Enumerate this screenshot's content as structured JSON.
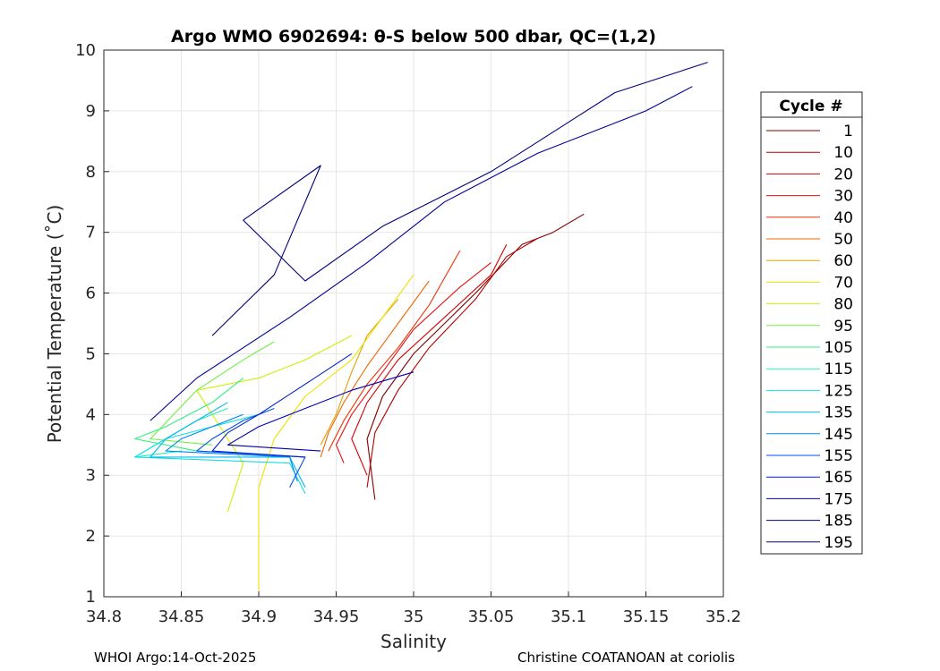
{
  "chart_data": {
    "type": "line",
    "title": "Argo WMO 6902694: θ-S below 500 dbar,  QC=(1,2)",
    "xlabel": "Salinity",
    "ylabel": "Potential Temperature (˚C)",
    "xlim": [
      34.8,
      35.2
    ],
    "ylim": [
      1,
      10
    ],
    "grid": true,
    "xticks": [
      "34.8",
      "34.85",
      "34.9",
      "34.95",
      "35",
      "35.05",
      "35.1",
      "35.15",
      "35.2"
    ],
    "yticks": [
      "1",
      "2",
      "3",
      "4",
      "5",
      "6",
      "7",
      "8",
      "9",
      "10"
    ],
    "legend": {
      "title": "Cycle #",
      "placement": "outside-right",
      "entries": [
        {
          "label": "1",
          "color": "#7f0000"
        },
        {
          "label": "10",
          "color": "#b40000"
        },
        {
          "label": "20",
          "color": "#d40000"
        },
        {
          "label": "30",
          "color": "#e81010"
        },
        {
          "label": "40",
          "color": "#f03000"
        },
        {
          "label": "50",
          "color": "#f06800"
        },
        {
          "label": "60",
          "color": "#e0a000"
        },
        {
          "label": "70",
          "color": "#f0e000"
        },
        {
          "label": "80",
          "color": "#d0f000"
        },
        {
          "label": "95",
          "color": "#70f040"
        },
        {
          "label": "105",
          "color": "#30f080"
        },
        {
          "label": "115",
          "color": "#20f0c0"
        },
        {
          "label": "125",
          "color": "#10e0e0"
        },
        {
          "label": "135",
          "color": "#00b8f0"
        },
        {
          "label": "145",
          "color": "#0088f0"
        },
        {
          "label": "155",
          "color": "#0050f0"
        },
        {
          "label": "165",
          "color": "#0020d0"
        },
        {
          "label": "175",
          "color": "#0000b0"
        },
        {
          "label": "185",
          "color": "#000098"
        },
        {
          "label": "195",
          "color": "#000080"
        }
      ]
    },
    "series": [
      {
        "cycle": "1",
        "salinity": [
          35.11,
          35.09,
          35.07,
          35.04,
          35.0,
          34.98,
          34.97,
          34.975
        ],
        "theta": [
          7.3,
          7.0,
          6.8,
          6.0,
          5.0,
          4.3,
          3.6,
          2.6
        ]
      },
      {
        "cycle": "10",
        "salinity": [
          35.08,
          35.06,
          35.04,
          35.01,
          34.99,
          34.975,
          34.97
        ],
        "theta": [
          6.9,
          6.6,
          5.9,
          5.1,
          4.4,
          3.7,
          2.8
        ]
      },
      {
        "cycle": "20",
        "salinity": [
          35.06,
          35.05,
          35.02,
          34.99,
          34.97,
          34.96,
          34.97
        ],
        "theta": [
          6.8,
          6.3,
          5.6,
          4.9,
          4.2,
          3.6,
          3.0
        ]
      },
      {
        "cycle": "30",
        "salinity": [
          35.05,
          35.03,
          35.0,
          34.98,
          34.96,
          34.95,
          34.955
        ],
        "theta": [
          6.5,
          6.1,
          5.4,
          4.7,
          4.0,
          3.5,
          3.2
        ]
      },
      {
        "cycle": "40",
        "salinity": [
          35.03,
          35.01,
          34.99,
          34.97,
          34.955,
          34.945
        ],
        "theta": [
          6.7,
          5.8,
          5.1,
          4.5,
          3.9,
          3.4
        ]
      },
      {
        "cycle": "50",
        "salinity": [
          35.01,
          34.99,
          34.97,
          34.955,
          34.945,
          34.94
        ],
        "theta": [
          6.2,
          5.5,
          4.8,
          4.2,
          3.7,
          3.3
        ]
      },
      {
        "cycle": "60",
        "salinity": [
          34.99,
          34.97,
          34.96,
          34.95,
          34.94
        ],
        "theta": [
          5.9,
          5.3,
          4.7,
          4.0,
          3.5
        ]
      },
      {
        "cycle": "70",
        "salinity": [
          35.0,
          34.98,
          34.96,
          34.93,
          34.91,
          34.9,
          34.9
        ],
        "theta": [
          6.3,
          5.6,
          4.9,
          4.3,
          3.6,
          2.8,
          1.1
        ]
      },
      {
        "cycle": "80",
        "salinity": [
          34.96,
          34.93,
          34.9,
          34.86,
          34.89,
          34.88
        ],
        "theta": [
          5.3,
          4.9,
          4.6,
          4.4,
          3.2,
          2.4
        ]
      },
      {
        "cycle": "95",
        "salinity": [
          34.91,
          34.89,
          34.86,
          34.83,
          34.87
        ],
        "theta": [
          5.2,
          4.9,
          4.4,
          3.6,
          3.5
        ]
      },
      {
        "cycle": "105",
        "salinity": [
          34.89,
          34.87,
          34.84,
          34.82,
          34.86
        ],
        "theta": [
          4.6,
          4.2,
          3.8,
          3.6,
          3.4
        ]
      },
      {
        "cycle": "115",
        "salinity": [
          34.88,
          34.86,
          34.84,
          34.82,
          34.85
        ],
        "theta": [
          4.1,
          3.9,
          3.6,
          3.3,
          3.4
        ]
      },
      {
        "cycle": "125",
        "salinity": [
          34.9,
          34.87,
          34.84,
          34.82,
          34.92,
          34.93
        ],
        "theta": [
          4.0,
          3.8,
          3.6,
          3.3,
          3.2,
          2.7
        ]
      },
      {
        "cycle": "135",
        "salinity": [
          34.88,
          34.86,
          34.84,
          34.83,
          34.92,
          34.93
        ],
        "theta": [
          4.2,
          3.9,
          3.6,
          3.3,
          3.3,
          2.8
        ]
      },
      {
        "cycle": "145",
        "salinity": [
          34.89,
          34.87,
          34.85,
          34.84,
          34.92,
          34.925
        ],
        "theta": [
          4.0,
          3.8,
          3.6,
          3.4,
          3.3,
          2.9
        ]
      },
      {
        "cycle": "155",
        "salinity": [
          34.91,
          34.89,
          34.87,
          34.86,
          34.93,
          34.92
        ],
        "theta": [
          4.1,
          3.9,
          3.6,
          3.4,
          3.3,
          2.8
        ]
      },
      {
        "cycle": "165",
        "salinity": [
          34.96,
          34.93,
          34.9,
          34.88,
          34.87,
          34.93
        ],
        "theta": [
          5.0,
          4.5,
          4.0,
          3.7,
          3.4,
          3.3
        ]
      },
      {
        "cycle": "175",
        "salinity": [
          35.0,
          34.96,
          34.93,
          34.9,
          34.88,
          34.94
        ],
        "theta": [
          4.7,
          4.4,
          4.1,
          3.8,
          3.5,
          3.4
        ]
      },
      {
        "cycle": "185",
        "salinity": [
          35.18,
          35.15,
          35.08,
          35.02,
          34.97,
          34.92,
          34.86,
          34.83
        ],
        "theta": [
          9.4,
          9.0,
          8.3,
          7.5,
          6.5,
          5.6,
          4.6,
          3.9
        ]
      },
      {
        "cycle": "195",
        "salinity": [
          35.19,
          35.13,
          35.05,
          34.98,
          34.93,
          34.89,
          34.94,
          34.91,
          34.87
        ],
        "theta": [
          9.8,
          9.3,
          8.0,
          7.1,
          6.2,
          7.2,
          8.1,
          6.3,
          5.3
        ]
      }
    ]
  },
  "footer": {
    "left": "WHOI Argo:14-Oct-2025",
    "right": "Christine COATANOAN at coriolis"
  }
}
